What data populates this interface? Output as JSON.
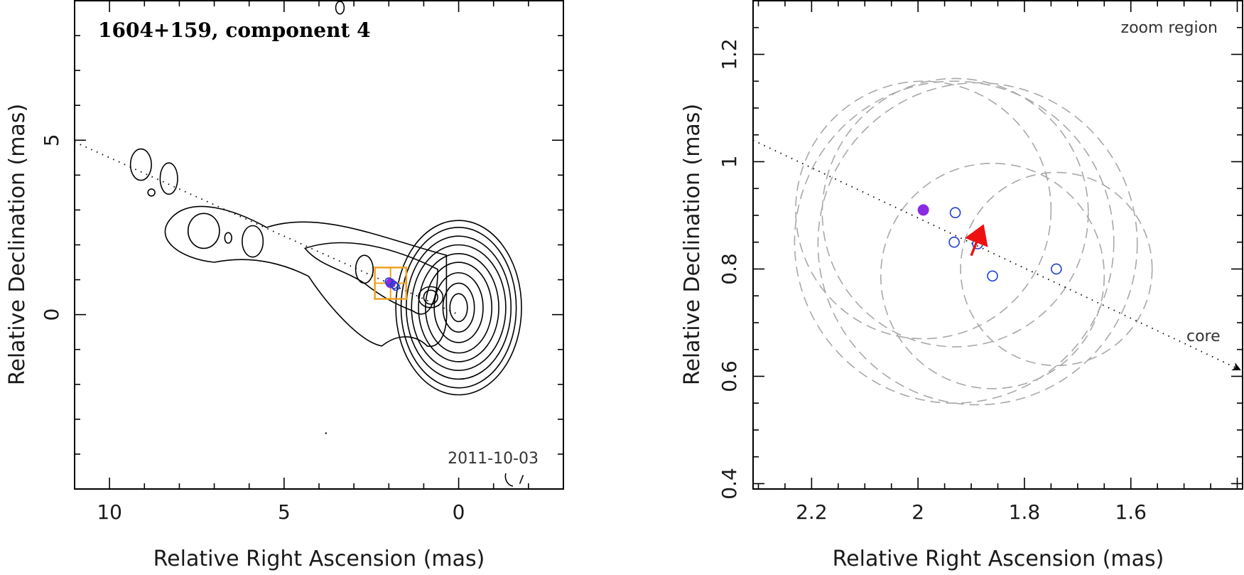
{
  "chart_data": [
    {
      "type": "contour",
      "title": "1604+159, component 4",
      "date": "2011-10-03",
      "xlabel": "Relative Right Ascension (mas)",
      "ylabel": "Relative Declination (mas)",
      "xlim": [
        11,
        -3
      ],
      "ylim": [
        -5,
        9
      ],
      "xticks": [
        10,
        5,
        0
      ],
      "yticks": [
        5,
        0
      ],
      "jet_axis": [
        [
          11,
          4.95
        ],
        [
          0,
          0
        ]
      ],
      "contour_levels": [
        {
          "center": [
            0.0,
            0.2
          ],
          "rx": [
            0.25,
            0.45,
            0.7,
            0.95,
            1.15,
            1.35,
            1.5,
            1.65,
            1.8
          ],
          "ry": [
            0.4,
            0.7,
            1.0,
            1.3,
            1.55,
            1.8,
            2.05,
            2.3,
            2.5
          ]
        },
        {
          "center": [
            0.8,
            0.5
          ],
          "rx": [
            0.2,
            0.35
          ],
          "ry": [
            0.2,
            0.3
          ]
        }
      ],
      "islands": [
        {
          "center": [
            7.3,
            2.4
          ],
          "rx": 0.45,
          "ry": 0.5
        },
        {
          "center": [
            5.9,
            2.1
          ],
          "rx": 0.3,
          "ry": 0.45
        },
        {
          "center": [
            6.6,
            2.2
          ],
          "rx": 0.1,
          "ry": 0.15
        },
        {
          "center": [
            2.7,
            1.3
          ],
          "rx": 0.25,
          "ry": 0.4
        },
        {
          "center": [
            9.1,
            4.3
          ],
          "rx": 0.3,
          "ry": 0.45
        },
        {
          "center": [
            8.3,
            3.9
          ],
          "rx": 0.25,
          "ry": 0.45
        },
        {
          "center": [
            8.8,
            3.5
          ],
          "rx": 0.1,
          "ry": 0.1
        },
        {
          "center": [
            3.4,
            8.8
          ],
          "rx": 0.12,
          "ry": 0.18
        }
      ],
      "component_marker": {
        "x": 1.95,
        "y": 0.9,
        "box_half_width": 0.45,
        "box_half_height": 0.45,
        "color": "#f0a020"
      },
      "colors": {
        "contour": "#000000",
        "box": "#f0a020",
        "filled_marker": "#8a2be2",
        "open_marker": "#1f3fd0"
      }
    },
    {
      "type": "scatter",
      "title": "zoom region",
      "xlabel": "Relative Right Ascension (mas)",
      "ylabel": "Relative Declination (mas)",
      "xlim": [
        2.31,
        1.39
      ],
      "ylim": [
        0.39,
        1.3
      ],
      "xticks": [
        2.2,
        2.0,
        1.8,
        1.6
      ],
      "xtick_labels": [
        "2.2",
        "2",
        "1.8",
        "1.6"
      ],
      "yticks": [
        0.4,
        0.6,
        0.8,
        1.0,
        1.2
      ],
      "ytick_labels": [
        "0.4",
        "0.6",
        "0.8",
        "1",
        "1.2"
      ],
      "filled_point": {
        "x": 1.99,
        "y": 0.91,
        "color": "#8a2be2"
      },
      "open_points": [
        {
          "x": 1.93,
          "y": 0.905
        },
        {
          "x": 1.932,
          "y": 0.85
        },
        {
          "x": 1.888,
          "y": 0.847
        },
        {
          "x": 1.86,
          "y": 0.787
        },
        {
          "x": 1.74,
          "y": 0.8
        }
      ],
      "uncertainty_circles": [
        {
          "x": 1.93,
          "y": 0.905,
          "r": 0.25
        },
        {
          "x": 1.932,
          "y": 0.85,
          "r": 0.3
        },
        {
          "x": 1.888,
          "y": 0.847,
          "r": 0.3
        },
        {
          "x": 1.86,
          "y": 0.787,
          "r": 0.21
        },
        {
          "x": 1.74,
          "y": 0.8,
          "r": 0.18
        },
        {
          "x": 1.99,
          "y": 0.91,
          "r": 0.24
        }
      ],
      "velocity_arrow": {
        "from": [
          1.9,
          0.825
        ],
        "to": [
          1.88,
          0.875
        ],
        "color": "#ee1111"
      },
      "core_direction": {
        "label": "core",
        "from": [
          2.31,
          1.04
        ],
        "to": [
          1.39,
          0.61
        ]
      },
      "colors": {
        "filled_marker": "#8a2be2",
        "open_marker": "#1f3fd0",
        "circles": "#a8a8a8",
        "arrow": "#ee1111"
      }
    }
  ]
}
